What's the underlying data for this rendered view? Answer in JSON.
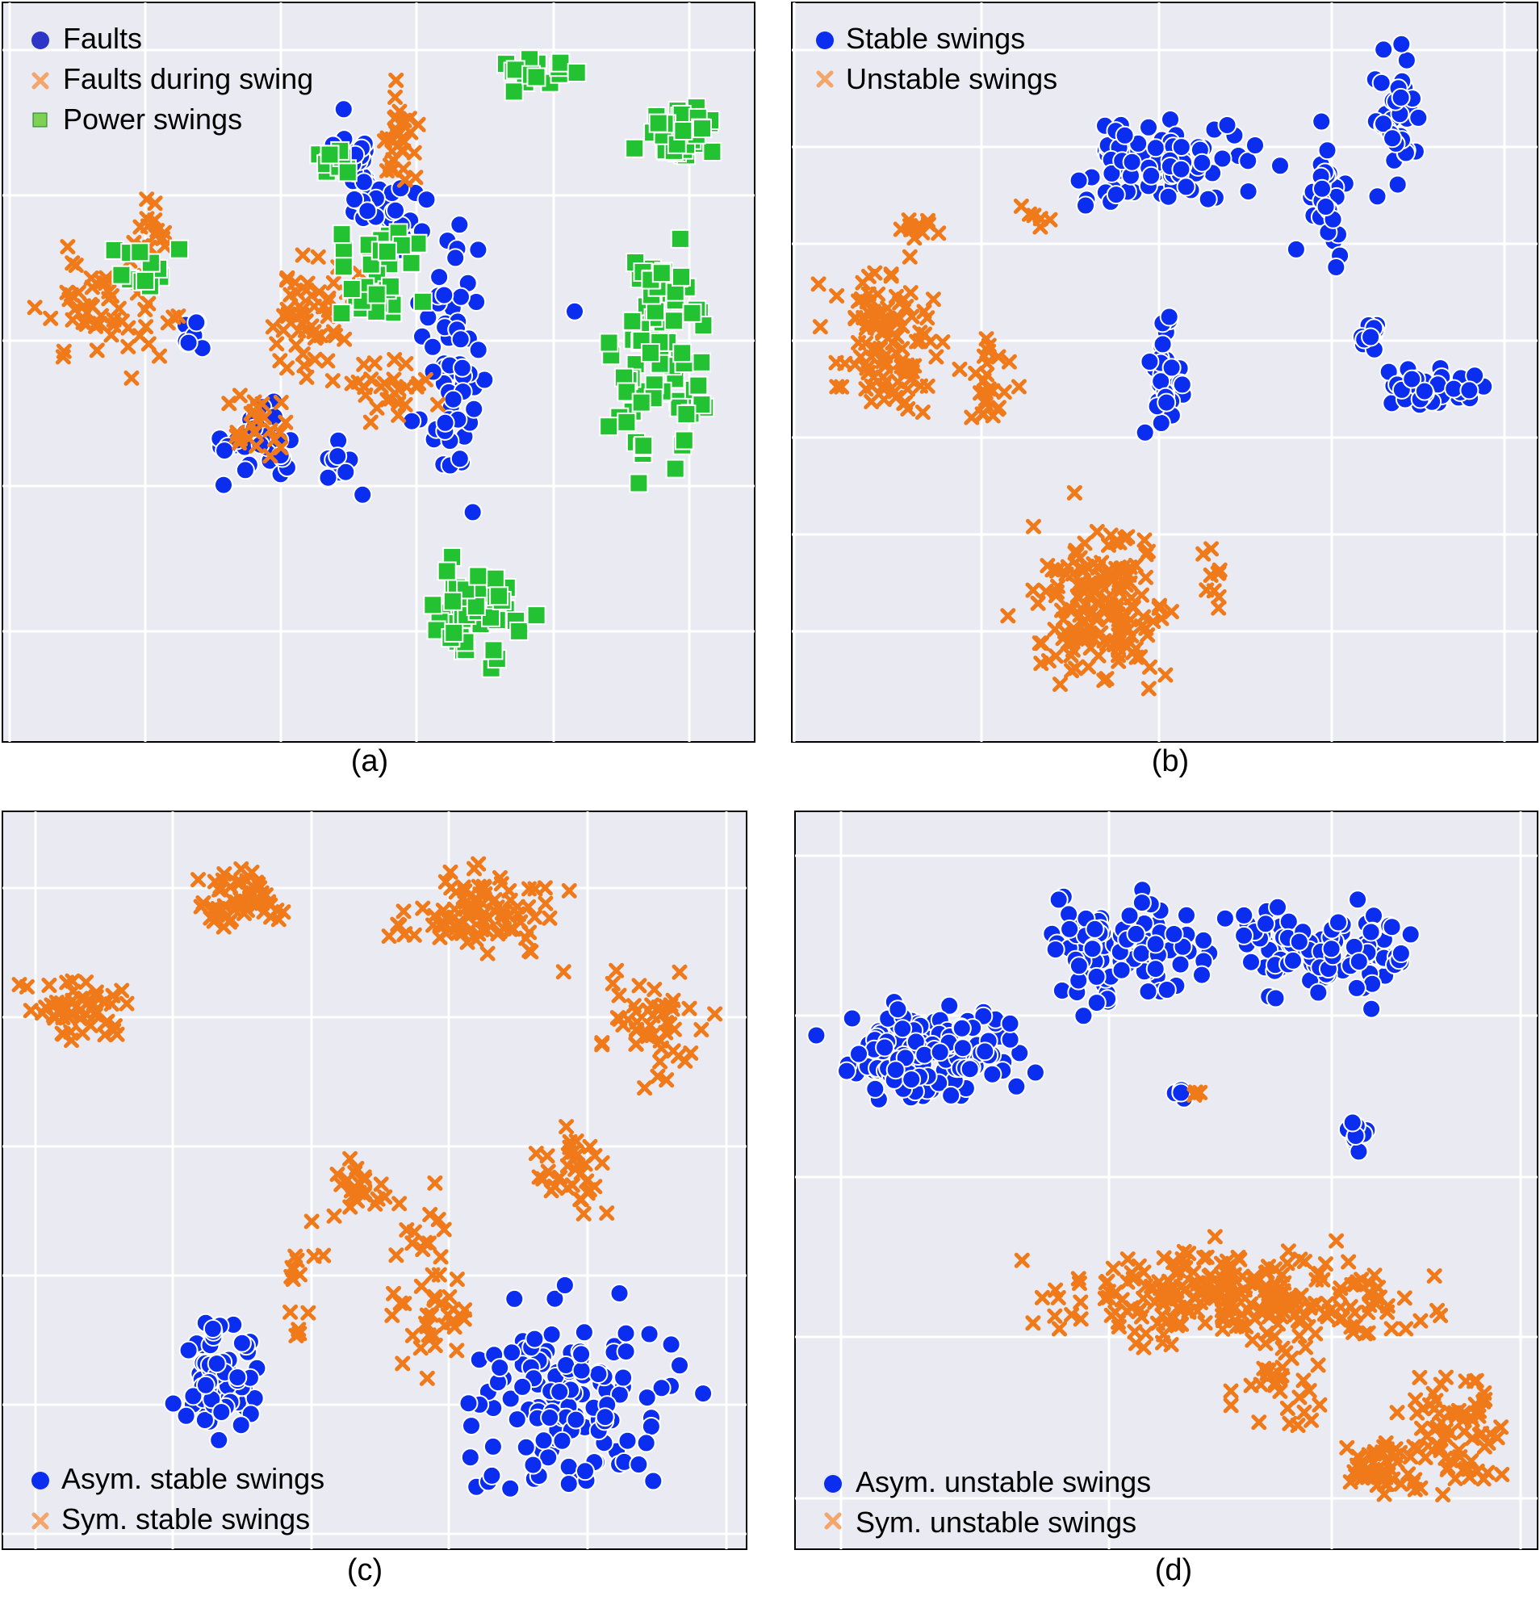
{
  "colors": {
    "background": "#eaeaf2",
    "grid": "#ffffff",
    "blue": "#0a2df0",
    "legend_blue": "#2c35c7",
    "orange": "#f07a1a",
    "legend_orange": "#f4a56a",
    "green": "#22c232",
    "legend_green": "#7fd155"
  },
  "chart_data": [
    {
      "type": "scatter",
      "caption": "(a)",
      "title": "",
      "xlabel": "",
      "ylabel": "",
      "tick_labels": "none",
      "grid": true,
      "legend_position": "top-left",
      "xlim": [
        0,
        100
      ],
      "ylim": [
        0,
        100
      ],
      "series": [
        {
          "name": "Faults",
          "marker": "circle",
          "color": "#0a2df0",
          "clusters": [
            {
              "cx": 47,
              "cy": 78,
              "sx": 2.0,
              "sy": 6.0,
              "n": 22
            },
            {
              "cx": 51,
              "cy": 72,
              "sx": 4.0,
              "sy": 4.0,
              "n": 30
            },
            {
              "cx": 60,
              "cy": 52,
              "sx": 3.5,
              "sy": 14.0,
              "n": 60
            },
            {
              "cx": 33,
              "cy": 40,
              "sx": 6.0,
              "sy": 4.0,
              "n": 30
            },
            {
              "cx": 45,
              "cy": 37,
              "sx": 3.0,
              "sy": 3.0,
              "n": 10
            },
            {
              "cx": 77,
              "cy": 58,
              "sx": 0.5,
              "sy": 0.5,
              "n": 1
            },
            {
              "cx": 26,
              "cy": 55,
              "sx": 2.0,
              "sy": 2.0,
              "n": 8
            }
          ]
        },
        {
          "name": "Faults during swing",
          "marker": "x",
          "color": "#f07a1a",
          "clusters": [
            {
              "cx": 14,
              "cy": 58,
              "sx": 7.0,
              "sy": 6.0,
              "n": 55
            },
            {
              "cx": 19,
              "cy": 70,
              "sx": 2.5,
              "sy": 3.0,
              "n": 15
            },
            {
              "cx": 53,
              "cy": 82,
              "sx": 2.0,
              "sy": 6.0,
              "n": 30
            },
            {
              "cx": 40,
              "cy": 57,
              "sx": 5.0,
              "sy": 7.0,
              "n": 55
            },
            {
              "cx": 33,
              "cy": 42,
              "sx": 4.0,
              "sy": 4.0,
              "n": 25
            },
            {
              "cx": 52,
              "cy": 47,
              "sx": 4.0,
              "sy": 5.0,
              "n": 25
            }
          ]
        },
        {
          "name": "Power swings",
          "marker": "square",
          "color": "#22c232",
          "clusters": [
            {
              "cx": 72,
              "cy": 91,
              "sx": 5.0,
              "sy": 2.0,
              "n": 14
            },
            {
              "cx": 91,
              "cy": 83,
              "sx": 4.5,
              "sy": 3.0,
              "n": 40
            },
            {
              "cx": 88,
              "cy": 53,
              "sx": 4.5,
              "sy": 13.0,
              "n": 90
            },
            {
              "cx": 64,
              "cy": 17,
              "sx": 5.5,
              "sy": 7.0,
              "n": 45
            },
            {
              "cx": 44,
              "cy": 79,
              "sx": 2.0,
              "sy": 2.0,
              "n": 10
            },
            {
              "cx": 50,
              "cy": 63,
              "sx": 6.0,
              "sy": 7.0,
              "n": 30
            },
            {
              "cx": 19,
              "cy": 64,
              "sx": 4.0,
              "sy": 3.0,
              "n": 12
            }
          ]
        }
      ]
    },
    {
      "type": "scatter",
      "caption": "(b)",
      "title": "",
      "xlabel": "",
      "ylabel": "",
      "tick_labels": "none",
      "grid": true,
      "legend_position": "top-left",
      "xlim": [
        0,
        100
      ],
      "ylim": [
        0,
        100
      ],
      "series": [
        {
          "name": "Stable swings",
          "marker": "circle",
          "color": "#0a2df0",
          "clusters": [
            {
              "cx": 50,
              "cy": 79,
              "sx": 10.0,
              "sy": 5.0,
              "n": 90
            },
            {
              "cx": 71,
              "cy": 74,
              "sx": 3.0,
              "sy": 6.0,
              "n": 35
            },
            {
              "cx": 82,
              "cy": 85,
              "sx": 3.0,
              "sy": 7.0,
              "n": 35
            },
            {
              "cx": 50,
              "cy": 49,
              "sx": 2.0,
              "sy": 8.0,
              "n": 35
            },
            {
              "cx": 78,
              "cy": 55,
              "sx": 1.0,
              "sy": 1.5,
              "n": 15
            },
            {
              "cx": 87,
              "cy": 48,
              "sx": 5.0,
              "sy": 2.0,
              "n": 40
            }
          ]
        },
        {
          "name": "Unstable swings",
          "marker": "x",
          "color": "#f07a1a",
          "clusters": [
            {
              "cx": 12,
              "cy": 54,
              "sx": 6.0,
              "sy": 8.0,
              "n": 110
            },
            {
              "cx": 26,
              "cy": 49,
              "sx": 2.5,
              "sy": 5.0,
              "n": 25
            },
            {
              "cx": 16,
              "cy": 70,
              "sx": 2.5,
              "sy": 1.5,
              "n": 12
            },
            {
              "cx": 41,
              "cy": 18,
              "sx": 7.5,
              "sy": 9.0,
              "n": 170
            },
            {
              "cx": 57,
              "cy": 22,
              "sx": 1.5,
              "sy": 3.0,
              "n": 10
            },
            {
              "cx": 32,
              "cy": 71,
              "sx": 1.5,
              "sy": 2.0,
              "n": 6
            }
          ]
        }
      ]
    },
    {
      "type": "scatter",
      "caption": "(c)",
      "title": "",
      "xlabel": "",
      "ylabel": "",
      "tick_labels": "none",
      "grid": true,
      "legend_position": "bottom-left",
      "xlim": [
        0,
        100
      ],
      "ylim": [
        0,
        100
      ],
      "series": [
        {
          "name": "Asym. stable swings",
          "marker": "circle",
          "color": "#0a2df0",
          "clusters": [
            {
              "cx": 29,
              "cy": 23,
              "sx": 5.0,
              "sy": 7.0,
              "n": 70
            },
            {
              "cx": 76,
              "cy": 20,
              "sx": 12.0,
              "sy": 11.0,
              "n": 130
            }
          ]
        },
        {
          "name": "Sym. stable swings",
          "marker": "x",
          "color": "#f07a1a",
          "clusters": [
            {
              "cx": 32,
              "cy": 89,
              "sx": 5.0,
              "sy": 3.0,
              "n": 55
            },
            {
              "cx": 9,
              "cy": 74,
              "sx": 6.0,
              "sy": 4.0,
              "n": 50
            },
            {
              "cx": 64,
              "cy": 87,
              "sx": 8.5,
              "sy": 4.5,
              "n": 90
            },
            {
              "cx": 88,
              "cy": 71,
              "sx": 5.0,
              "sy": 6.0,
              "n": 50
            },
            {
              "cx": 48,
              "cy": 49,
              "sx": 3.0,
              "sy": 3.0,
              "n": 25
            },
            {
              "cx": 77,
              "cy": 51,
              "sx": 4.0,
              "sy": 5.0,
              "n": 35
            },
            {
              "cx": 58,
              "cy": 35,
              "sx": 4.0,
              "sy": 9.0,
              "n": 45
            },
            {
              "cx": 39,
              "cy": 35,
              "sx": 2.5,
              "sy": 6.0,
              "n": 15
            }
          ]
        }
      ]
    },
    {
      "type": "scatter",
      "caption": "(d)",
      "title": "",
      "xlabel": "",
      "ylabel": "",
      "tick_labels": "none",
      "grid": true,
      "legend_position": "bottom-left",
      "xlim": [
        0,
        100
      ],
      "ylim": [
        0,
        100
      ],
      "series": [
        {
          "name": "Asym. unstable swings",
          "marker": "circle",
          "color": "#0a2df0",
          "clusters": [
            {
              "cx": 18,
              "cy": 68,
              "sx": 10.0,
              "sy": 6.0,
              "n": 150
            },
            {
              "cx": 44,
              "cy": 82,
              "sx": 8.0,
              "sy": 6.0,
              "n": 90
            },
            {
              "cx": 72,
              "cy": 82,
              "sx": 12.0,
              "sy": 5.0,
              "n": 110
            },
            {
              "cx": 76,
              "cy": 56,
              "sx": 1.2,
              "sy": 1.8,
              "n": 10
            },
            {
              "cx": 52,
              "cy": 62,
              "sx": 1.0,
              "sy": 0.5,
              "n": 4
            }
          ]
        },
        {
          "name": "Sym. unstable swings",
          "marker": "x",
          "color": "#f07a1a",
          "clusters": [
            {
              "cx": 60,
              "cy": 34,
              "sx": 19.0,
              "sy": 5.0,
              "n": 260
            },
            {
              "cx": 65,
              "cy": 23,
              "sx": 5.0,
              "sy": 6.0,
              "n": 35
            },
            {
              "cx": 89,
              "cy": 15,
              "sx": 5.5,
              "sy": 7.0,
              "n": 80
            },
            {
              "cx": 79,
              "cy": 10,
              "sx": 4.0,
              "sy": 3.0,
              "n": 40
            },
            {
              "cx": 54,
              "cy": 62,
              "sx": 0.8,
              "sy": 0.4,
              "n": 4
            }
          ]
        }
      ]
    }
  ]
}
